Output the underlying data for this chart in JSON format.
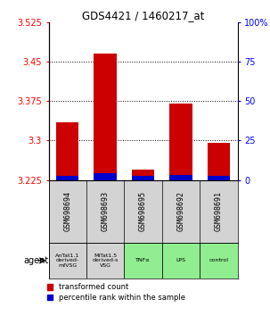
{
  "title": "GDS4421 / 1460217_at",
  "samples": [
    "GSM698694",
    "GSM698693",
    "GSM698695",
    "GSM698692",
    "GSM698691"
  ],
  "agents": [
    "AnTat1.1\nderived-\nmfVSG",
    "MiTat1.5\nderived-s\nVSG",
    "TNFα",
    "LPS",
    "control"
  ],
  "agent_colors": [
    "#d3d3d3",
    "#d3d3d3",
    "#90ee90",
    "#90ee90",
    "#90ee90"
  ],
  "red_values": [
    3.335,
    3.465,
    3.245,
    3.37,
    3.295
  ],
  "blue_values": [
    3.233,
    3.238,
    3.232,
    3.235,
    3.232
  ],
  "baseline": 3.225,
  "ylim_left": [
    3.225,
    3.525
  ],
  "ylim_right": [
    0,
    100
  ],
  "yticks_left": [
    3.225,
    3.3,
    3.375,
    3.45,
    3.525
  ],
  "yticks_right": [
    0,
    25,
    50,
    75,
    100
  ],
  "grid_vals": [
    3.3,
    3.375,
    3.45
  ],
  "bar_width": 0.6,
  "red_color": "#cc0000",
  "blue_color": "#0000cc",
  "legend_red": "transformed count",
  "legend_blue": "percentile rank within the sample",
  "figsize": [
    3.03,
    3.54
  ],
  "dpi": 100
}
